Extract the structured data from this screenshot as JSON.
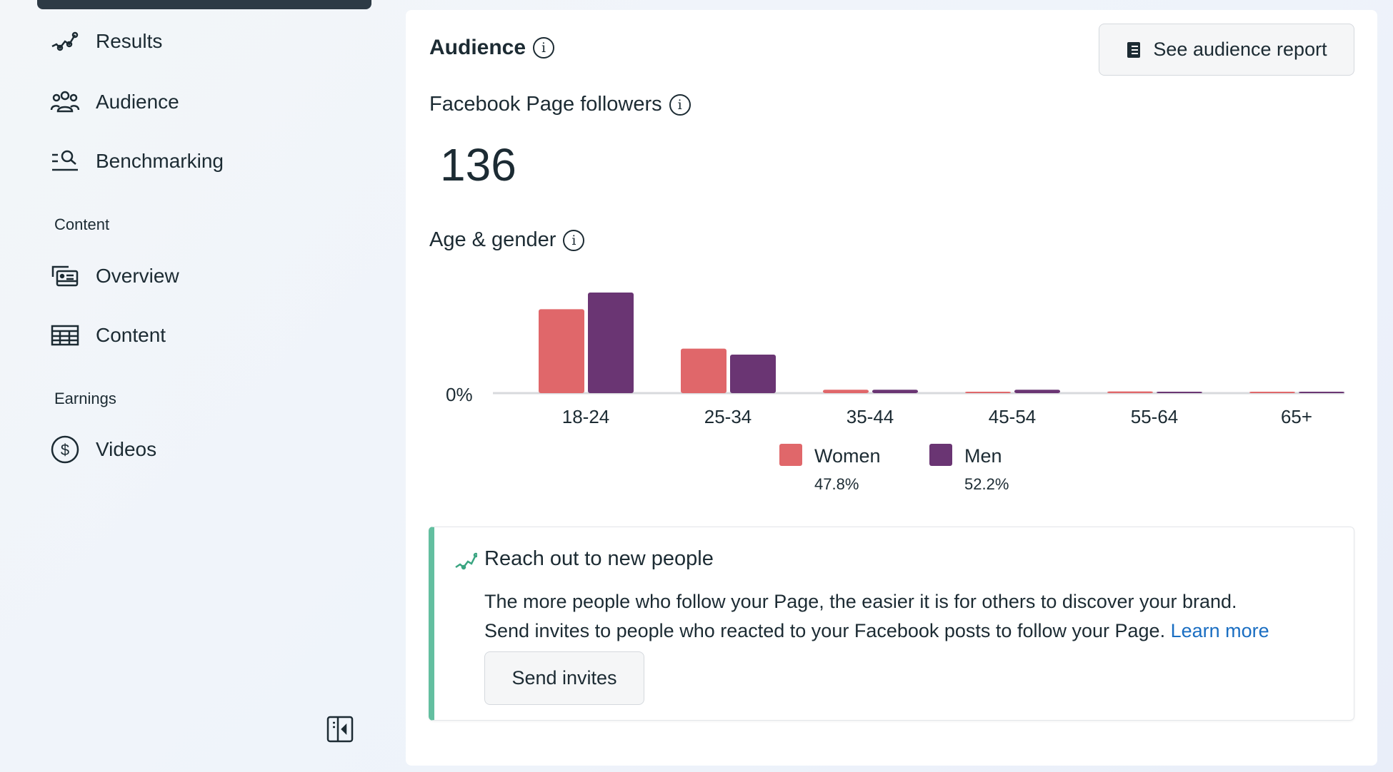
{
  "sidebar": {
    "items": [
      {
        "label": "Results",
        "icon": "results-icon"
      },
      {
        "label": "Audience",
        "icon": "audience-icon"
      },
      {
        "label": "Benchmarking",
        "icon": "benchmarking-icon"
      }
    ],
    "content_section": "Content",
    "content_items": [
      {
        "label": "Overview"
      },
      {
        "label": "Content"
      }
    ],
    "earnings_section": "Earnings",
    "earnings_items": [
      {
        "label": "Videos"
      }
    ]
  },
  "main": {
    "title": "Audience",
    "report_button": "See audience report",
    "followers_label": "Facebook Page followers",
    "followers_count": "136",
    "age_gender_label": "Age & gender",
    "reach": {
      "title": "Reach out to new people",
      "line1": "The more people who follow your Page, the easier it is for others to discover your brand.",
      "line2": "Send invites to people who reacted to your Facebook posts to follow your Page.",
      "learn_more": "Learn more",
      "send_button": "Send invites"
    }
  },
  "chart_data": {
    "type": "bar",
    "categories": [
      "18-24",
      "25-34",
      "35-44",
      "45-54",
      "55-64",
      "65+"
    ],
    "ytick": "0%",
    "series": [
      {
        "name": "Women",
        "total": "47.8%",
        "color": "#e0676a",
        "values": [
          29.6,
          15.7,
          1.2,
          0.3,
          0.6,
          0.3
        ]
      },
      {
        "name": "Men",
        "total": "52.2%",
        "color": "#6a3573",
        "values": [
          35.5,
          13.6,
          1.2,
          1.2,
          0.3,
          0.3
        ]
      }
    ],
    "ylim": [
      0,
      36
    ]
  }
}
